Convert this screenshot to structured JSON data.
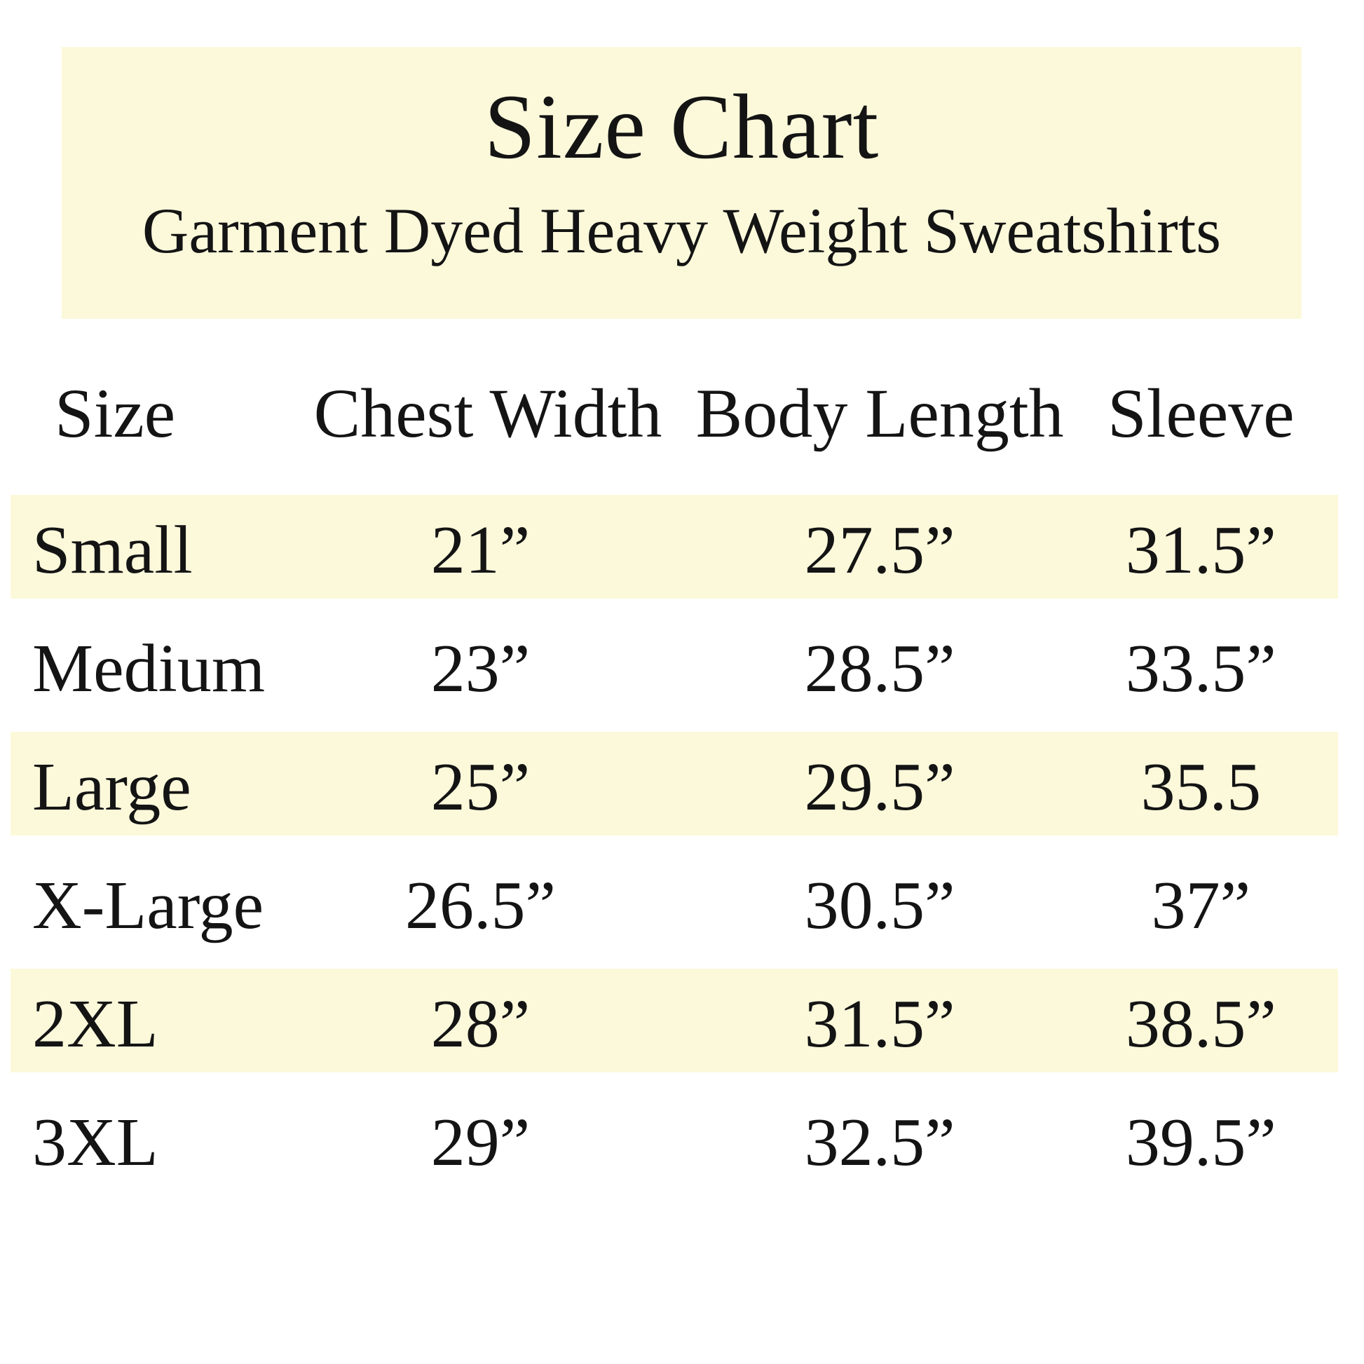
{
  "page": {
    "background_color": "#FFFFFF",
    "text_color": "#141414",
    "highlight_color": "#FCF9DB"
  },
  "header": {
    "title": "Size Chart",
    "subtitle": "Garment Dyed Heavy Weight Sweatshirts"
  },
  "table": {
    "columns": {
      "size": "Size",
      "chest_width": "Chest Width",
      "body_length": "Body Length",
      "sleeve": "Sleeve"
    },
    "rows": [
      {
        "size": "Small",
        "chest_width": "21”",
        "body_length": "27.5”",
        "sleeve": "31.5”",
        "highlighted": true
      },
      {
        "size": "Medium",
        "chest_width": "23”",
        "body_length": "28.5”",
        "sleeve": "33.5”",
        "highlighted": false
      },
      {
        "size": "Large",
        "chest_width": "25”",
        "body_length": "29.5”",
        "sleeve": "35.5",
        "highlighted": true
      },
      {
        "size": "X-Large",
        "chest_width": "26.5”",
        "body_length": "30.5”",
        "sleeve": "37”",
        "highlighted": false
      },
      {
        "size": "2XL",
        "chest_width": "28”",
        "body_length": "31.5”",
        "sleeve": "38.5”",
        "highlighted": true
      },
      {
        "size": "3XL",
        "chest_width": "29”",
        "body_length": "32.5”",
        "sleeve": "39.5”",
        "highlighted": false
      }
    ]
  }
}
